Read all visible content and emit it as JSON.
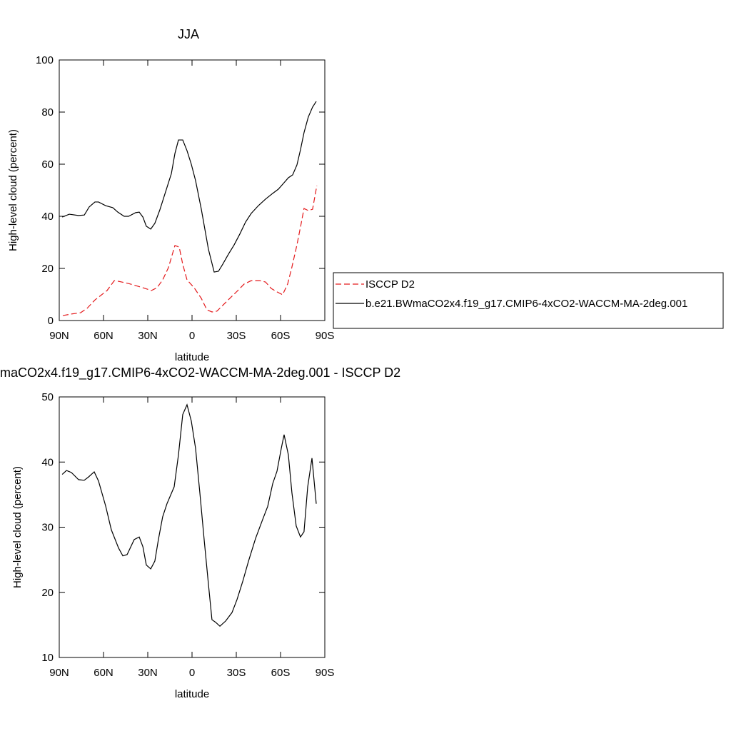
{
  "chart_data": [
    {
      "type": "line",
      "title": "JJA",
      "xlabel": "latitude",
      "ylabel": "High-level cloud (percent)",
      "xlim": [
        90,
        -90
      ],
      "xticks": [
        {
          "value": 90,
          "label": "90N"
        },
        {
          "value": 60,
          "label": "60N"
        },
        {
          "value": 30,
          "label": "30N"
        },
        0,
        {
          "value": -30,
          "label": "30S"
        },
        {
          "value": -60,
          "label": "60S"
        },
        {
          "value": -90,
          "label": "90S"
        }
      ],
      "ylim": [
        0,
        100
      ],
      "yticks": [
        0,
        20,
        40,
        60,
        80,
        100
      ],
      "legend": "right",
      "series": [
        {
          "name": "ISCCP D2",
          "color": "#e41a1c",
          "line_style": "dashed",
          "x": [
            87.6,
            81.8,
            75.5,
            71.1,
            65.8,
            57.6,
            52.7,
            50.3,
            43,
            33.3,
            27.6,
            23.7,
            19.9,
            16,
            11.6,
            8.7,
            6.3,
            3.4,
            -1.4,
            -6.3,
            -10.1,
            -13.5,
            -16.9,
            -20.8,
            -25.6,
            -30.5,
            -35.3,
            -40.1,
            -45.9,
            -49.8,
            -53.7,
            -57.6,
            -61.4,
            -64.8,
            -67.7,
            -71.1,
            -74,
            -75.9,
            -78.8,
            -81.7,
            -84.6
          ],
          "values": [
            1.9,
            2.5,
            3,
            4.7,
            7.9,
            11.5,
            15.3,
            15.1,
            14.2,
            12.6,
            11.5,
            12.6,
            15.6,
            20.3,
            28.8,
            28.2,
            21.6,
            15.6,
            12.6,
            8.5,
            4.1,
            3.3,
            3.6,
            5.8,
            8.5,
            11.2,
            14,
            15.3,
            15.3,
            14.8,
            12.3,
            11,
            9.9,
            14,
            20.5,
            29,
            37.3,
            43,
            42.2,
            42.7,
            51.8
          ]
        },
        {
          "name": "b.e21.BWmaCO2x4.f19_g17.CMIP6-4xCO2-WACCM-MA-2deg.001",
          "color": "#000000",
          "line_style": "solid",
          "x": [
            88,
            83.2,
            77,
            73,
            69.7,
            65.8,
            63.4,
            58.6,
            53.7,
            50.3,
            46,
            43,
            38.2,
            35.8,
            33.3,
            31,
            28,
            25.2,
            21.8,
            14,
            11.6,
            9.2,
            6.3,
            3.4,
            0.5,
            -2.4,
            -6.3,
            -11.1,
            -15,
            -17.9,
            -20.8,
            -24.7,
            -28.5,
            -32.4,
            -36.3,
            -40.1,
            -45,
            -49.8,
            -54.7,
            -58.5,
            -62.4,
            -65.3,
            -68.2,
            -71.1,
            -73.5,
            -75.9,
            -78.8,
            -81.7,
            -84.2
          ],
          "values": [
            39.7,
            40.8,
            40.3,
            40.5,
            43.6,
            45.5,
            45.5,
            44.1,
            43.3,
            41.6,
            40,
            40,
            41.4,
            41.6,
            39.7,
            36.2,
            35.1,
            37.3,
            42.5,
            56.4,
            64.1,
            69.3,
            69.3,
            65.2,
            60,
            53.7,
            42.7,
            27.4,
            18.6,
            18.9,
            21.6,
            25.5,
            29,
            33.2,
            37.8,
            41.1,
            44.1,
            46.6,
            48.8,
            50.4,
            52.9,
            54.8,
            55.9,
            59.7,
            65.5,
            72.1,
            78.1,
            81.9,
            84.1
          ]
        }
      ]
    },
    {
      "type": "line",
      "title": "maCO2x4.f19_g17.CMIP6-4xCO2-WACCM-MA-2deg.001 - ISCCP D2",
      "xlabel": "latitude",
      "ylabel": "High-level cloud (percent)",
      "xlim": [
        90,
        -90
      ],
      "xticks": [
        {
          "value": 90,
          "label": "90N"
        },
        {
          "value": 60,
          "label": "60N"
        },
        {
          "value": 30,
          "label": "30N"
        },
        0,
        {
          "value": -30,
          "label": "30S"
        },
        {
          "value": -60,
          "label": "60S"
        },
        {
          "value": -90,
          "label": "90S"
        }
      ],
      "ylim": [
        10,
        50
      ],
      "yticks": [
        10,
        20,
        30,
        40,
        50
      ],
      "series": [
        {
          "color": "#000000",
          "line_style": "solid",
          "x": [
            88,
            85.1,
            81.8,
            76.9,
            73.1,
            70.2,
            66.3,
            63.4,
            58.6,
            54.7,
            49.8,
            46.9,
            44,
            39.2,
            35.8,
            33.3,
            31,
            28,
            25.2,
            22.8,
            19.9,
            17,
            12.1,
            9.2,
            6.3,
            3.4,
            0.5,
            -2.4,
            -5.3,
            -8.3,
            -11.1,
            -13.5,
            -16,
            -18.9,
            -22.8,
            -27.1,
            -30.5,
            -34.4,
            -38.3,
            -43.1,
            -47.9,
            -51.3,
            -54.7,
            -57.6,
            -60.5,
            -62.4,
            -65.3,
            -67.7,
            -70.6,
            -73.5,
            -75.9,
            -78.4,
            -81.3,
            -84.2
          ],
          "values": [
            38.1,
            38.7,
            38.4,
            37.3,
            37.2,
            37.7,
            38.5,
            37.1,
            33.3,
            29.6,
            26.8,
            25.6,
            25.8,
            28.1,
            28.5,
            27,
            24.2,
            23.6,
            24.8,
            28.1,
            31.6,
            33.6,
            36.2,
            41.1,
            47.3,
            48.8,
            46.3,
            42.1,
            35.3,
            27.9,
            21.3,
            15.8,
            15.4,
            14.8,
            15.6,
            16.9,
            18.9,
            21.7,
            24.8,
            28.3,
            31.2,
            33.2,
            36.7,
            38.6,
            42.1,
            44.2,
            41.1,
            35.3,
            30.2,
            28.5,
            29.3,
            36.2,
            40.6,
            33.6
          ]
        }
      ]
    }
  ]
}
